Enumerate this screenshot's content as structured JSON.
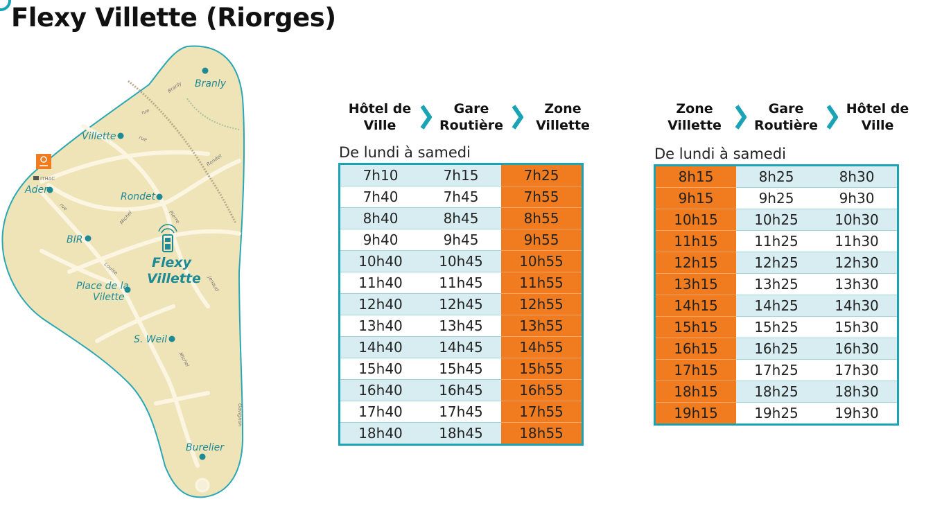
{
  "title": "Flexy Villette (Riorges)",
  "map": {
    "stops": [
      "Branly",
      "Villette",
      "Ader",
      "Rondet",
      "BIR",
      "Place de la",
      "Vilette",
      "S. Weil",
      "Burelier"
    ],
    "zone_label_1": "Flexy",
    "zone_label_2": "Villette",
    "logo_text": "ITHAC",
    "streets": [
      "Branly",
      "rue",
      "rue",
      "Rondet",
      "rue",
      "Pierre",
      "Michel",
      "Louise",
      "Michel",
      "Gavignon",
      "Jenaud"
    ]
  },
  "colors": {
    "teal": "#1aa3b5",
    "orange": "#f07c1f",
    "light_row": "#d7edf2",
    "map_fill": "#efe3b8"
  },
  "table1": {
    "headers": [
      "Hôtel de Ville",
      "Gare Routière",
      "Zone Villette"
    ],
    "subtitle": "De lundi à samedi",
    "rows": [
      [
        "7h10",
        "7h15",
        "7h25"
      ],
      [
        "7h40",
        "7h45",
        "7h55"
      ],
      [
        "8h40",
        "8h45",
        "8h55"
      ],
      [
        "9h40",
        "9h45",
        "9h55"
      ],
      [
        "10h40",
        "10h45",
        "10h55"
      ],
      [
        "11h40",
        "11h45",
        "11h55"
      ],
      [
        "12h40",
        "12h45",
        "12h55"
      ],
      [
        "13h40",
        "13h45",
        "13h55"
      ],
      [
        "14h40",
        "14h45",
        "14h55"
      ],
      [
        "15h40",
        "15h45",
        "15h55"
      ],
      [
        "16h40",
        "16h45",
        "16h55"
      ],
      [
        "17h40",
        "17h45",
        "17h55"
      ],
      [
        "18h40",
        "18h45",
        "18h55"
      ]
    ]
  },
  "table2": {
    "headers": [
      "Zone Villette",
      "Gare Routière",
      "Hôtel de Ville"
    ],
    "subtitle": "De lundi à samedi",
    "rows": [
      [
        "8h15",
        "8h25",
        "8h30"
      ],
      [
        "9h15",
        "9h25",
        "9h30"
      ],
      [
        "10h15",
        "10h25",
        "10h30"
      ],
      [
        "11h15",
        "11h25",
        "11h30"
      ],
      [
        "12h15",
        "12h25",
        "12h30"
      ],
      [
        "13h15",
        "13h25",
        "13h30"
      ],
      [
        "14h15",
        "14h25",
        "14h30"
      ],
      [
        "15h15",
        "15h25",
        "15h30"
      ],
      [
        "16h15",
        "16h25",
        "16h30"
      ],
      [
        "17h15",
        "17h25",
        "17h30"
      ],
      [
        "18h15",
        "18h25",
        "18h30"
      ],
      [
        "19h15",
        "19h25",
        "19h30"
      ]
    ]
  }
}
